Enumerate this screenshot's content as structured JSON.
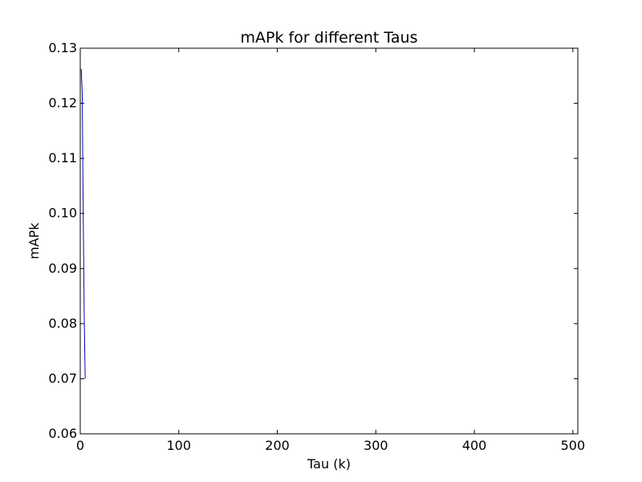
{
  "chart_data": {
    "type": "line",
    "title": "mAPk for different Taus",
    "xlabel": "Tau (k)",
    "ylabel": "mAPk",
    "xlim": [
      0,
      505
    ],
    "ylim": [
      0.06,
      0.13
    ],
    "xticks": [
      0,
      100,
      200,
      300,
      400,
      500
    ],
    "yticks": [
      0.06,
      0.07,
      0.08,
      0.09,
      0.1,
      0.11,
      0.12,
      0.13
    ],
    "xtick_labels": [
      "0",
      "100",
      "200",
      "300",
      "400",
      "500"
    ],
    "ytick_labels": [
      "0.06",
      "0.07",
      "0.08",
      "0.09",
      "0.10",
      "0.11",
      "0.12",
      "0.13"
    ],
    "grid": false,
    "legend": "none",
    "series": [
      {
        "color": "#0000bf",
        "x": [
          1,
          2,
          3,
          4,
          5
        ],
        "y": [
          0.1262,
          0.122,
          0.1,
          0.082,
          0.07
        ]
      }
    ]
  }
}
